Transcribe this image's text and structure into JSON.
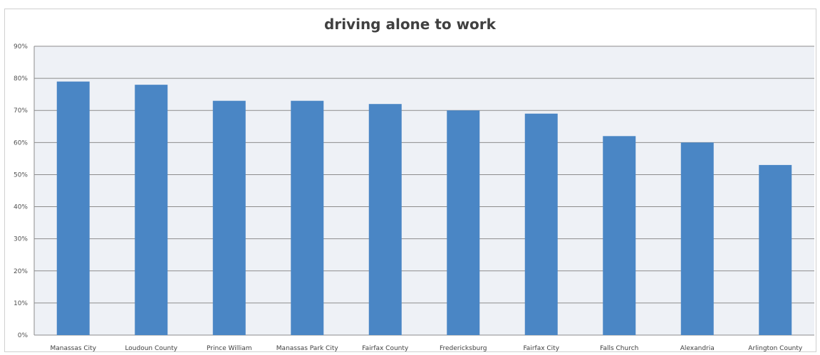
{
  "chart_data": {
    "type": "bar",
    "title": "driving alone to work",
    "xlabel": "",
    "ylabel": "",
    "categories": [
      "Manassas City",
      "Loudoun County",
      "Prince William",
      "Manassas Park City",
      "Fairfax County",
      "Fredericksburg",
      "Fairfax City",
      "Falls Church",
      "Alexandria",
      "Arlington County"
    ],
    "values": [
      79,
      78,
      73,
      73,
      72,
      70,
      69,
      62,
      60,
      53
    ],
    "ylim": [
      0,
      90
    ],
    "yticks": [
      0,
      10,
      20,
      30,
      40,
      50,
      60,
      70,
      80,
      90
    ],
    "ytick_labels": [
      "0%",
      "10%",
      "20%",
      "30%",
      "40%",
      "50%",
      "60%",
      "70%",
      "80%",
      "90%"
    ],
    "grid": true,
    "legend": "none",
    "colors": {
      "bar": "#4a86c5",
      "plot_background": "#eef1f6",
      "gridline": "#8c8c8c"
    }
  }
}
